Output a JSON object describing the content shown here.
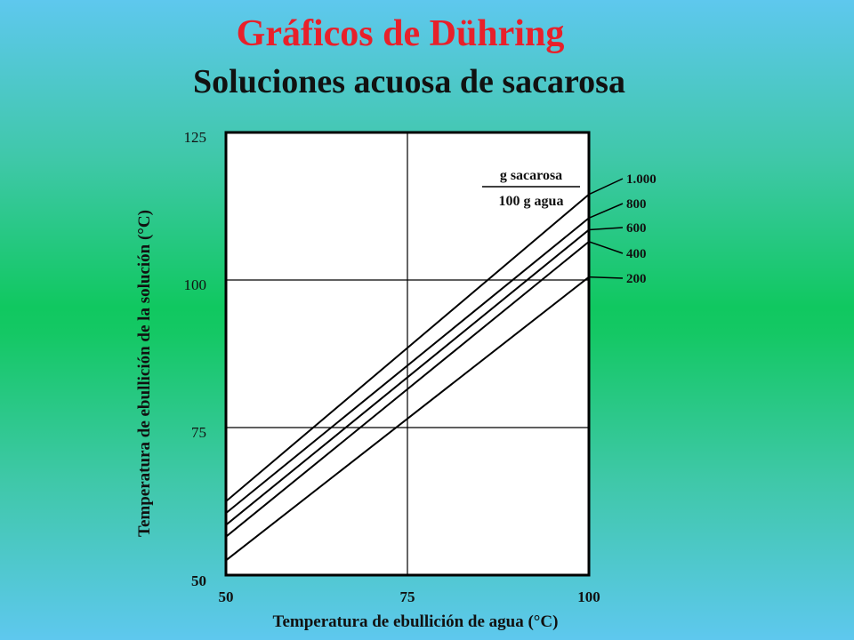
{
  "header": {
    "title": "Gráficos de Dühring",
    "subtitle": "Soluciones acuosa de sacarosa"
  },
  "colors": {
    "title": "#e8202a",
    "plot_background": "#ffffff",
    "line": "#000000"
  },
  "chart_data": {
    "type": "line",
    "title": "Gráficos de Dühring",
    "subtitle": "Soluciones acuosa de sacarosa",
    "xlabel": "Temperatura de ebullición de agua (°C)",
    "ylabel": "Temperatura de ebullición de la solución (°C)",
    "xlim": [
      50,
      100
    ],
    "ylim": [
      50,
      125
    ],
    "x_ticks": [
      "50",
      "75",
      "100"
    ],
    "y_ticks": [
      "50",
      "75",
      "100",
      "125"
    ],
    "grid": true,
    "legend": {
      "numerator": "g sacarosa",
      "denominator": "100 g agua",
      "placement": "top-right"
    },
    "series": [
      {
        "name": "1.000",
        "x": [
          50,
          100
        ],
        "y": [
          62.5,
          114.5
        ]
      },
      {
        "name": "800",
        "x": [
          50,
          100
        ],
        "y": [
          60.5,
          110.5
        ]
      },
      {
        "name": "600",
        "x": [
          50,
          100
        ],
        "y": [
          58.5,
          108.5
        ]
      },
      {
        "name": "400",
        "x": [
          50,
          100
        ],
        "y": [
          56.5,
          106.5
        ]
      },
      {
        "name": "200",
        "x": [
          50,
          100
        ],
        "y": [
          52.5,
          100.5
        ]
      }
    ]
  }
}
